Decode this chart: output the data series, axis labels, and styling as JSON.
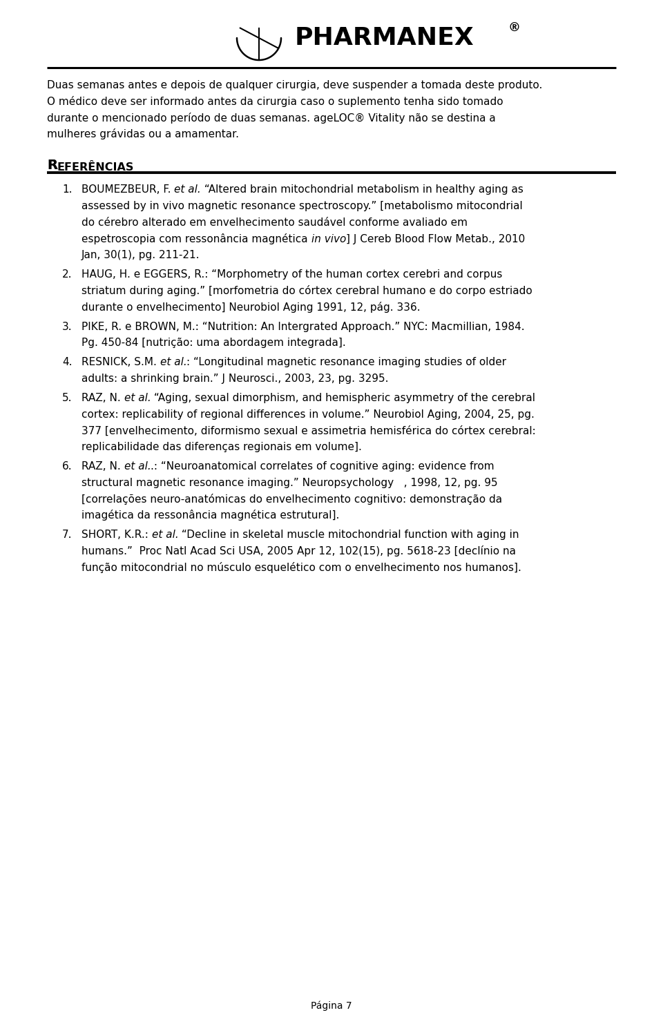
{
  "background_color": "#ffffff",
  "text_color": "#000000",
  "line_color": "#000000",
  "page_number": "Página 7",
  "intro_text": "Duas semanas antes e depois de qualquer cirurgia, deve suspender a tomada deste produto.\nO médico deve ser informado antes da cirurgia caso o suplemento tenha sido tomado\ndurante o mencionado período de duas semanas. ageLOC® Vitality não se destina a\nmulheres grávidas ou a amamentar.",
  "ref_heading_big": "R",
  "ref_heading_rest": "EFERÊNCIAS",
  "references": [
    {
      "num": "1.",
      "lines": [
        [
          {
            "t": "BOUMEZBEUR, F. ",
            "i": false
          },
          {
            "t": "et al.",
            "i": true
          },
          {
            "t": " “Altered brain mitochondrial metabolism in healthy aging as",
            "i": false
          }
        ],
        [
          {
            "t": "assessed by in vivo magnetic resonance spectroscopy.” [metabolismo mitocondrial",
            "i": false
          }
        ],
        [
          {
            "t": "do cérebro alterado em envelhecimento saudável conforme avaliado em",
            "i": false
          }
        ],
        [
          {
            "t": "espetroscopia com ressonância magnética ",
            "i": false
          },
          {
            "t": "in vivo",
            "i": true
          },
          {
            "t": "] J Cereb Blood Flow Metab., 2010",
            "i": false
          }
        ],
        [
          {
            "t": "Jan, 30(1), pg. 211-21.",
            "i": false
          }
        ]
      ]
    },
    {
      "num": "2.",
      "lines": [
        [
          {
            "t": "HAUG, H. e EGGERS, R.: “Morphometry of the human cortex cerebri and corpus",
            "i": false
          }
        ],
        [
          {
            "t": "striatum during aging.” [morfometria do córtex cerebral humano e do corpo estriado",
            "i": false
          }
        ],
        [
          {
            "t": "durante o envelhecimento] Neurobiol Aging 1991, 12, pág. 336.",
            "i": false
          }
        ]
      ]
    },
    {
      "num": "3.",
      "lines": [
        [
          {
            "t": "PIKE, R. e BROWN, M.: “Nutrition: An Intergrated Approach.” NYC: Macmillian, 1984.",
            "i": false
          }
        ],
        [
          {
            "t": "Pg. 450-84 [nutrição: uma abordagem integrada].",
            "i": false
          }
        ]
      ]
    },
    {
      "num": "4.",
      "lines": [
        [
          {
            "t": "RESNICK, S.M. ",
            "i": false
          },
          {
            "t": "et al.",
            "i": true
          },
          {
            "t": ": “Longitudinal magnetic resonance imaging studies of older",
            "i": false
          }
        ],
        [
          {
            "t": "adults: a shrinking brain.” J Neurosci., 2003, 23, pg. 3295.",
            "i": false
          }
        ]
      ]
    },
    {
      "num": "5.",
      "lines": [
        [
          {
            "t": "RAZ, N. ",
            "i": false
          },
          {
            "t": "et al.",
            "i": true
          },
          {
            "t": " “Aging, sexual dimorphism, and hemispheric asymmetry of the cerebral",
            "i": false
          }
        ],
        [
          {
            "t": "cortex: replicability of regional differences in volume.” Neurobiol Aging, 2004, 25, pg.",
            "i": false
          }
        ],
        [
          {
            "t": "377 [envelhecimento, diformismo sexual e assimetria hemisférica do córtex cerebral:",
            "i": false
          }
        ],
        [
          {
            "t": "replicabilidade das diferenças regionais em volume].",
            "i": false
          }
        ]
      ]
    },
    {
      "num": "6.",
      "lines": [
        [
          {
            "t": "RAZ, N. ",
            "i": false
          },
          {
            "t": "et al.",
            "i": true
          },
          {
            "t": ".: “Neuroanatomical correlates of cognitive aging: evidence from",
            "i": false
          }
        ],
        [
          {
            "t": "structural magnetic resonance imaging.” Neuropsychology   , 1998, 12, pg. 95",
            "i": false
          }
        ],
        [
          {
            "t": "[correlações neuro-anatómicas do envelhecimento cognitivo: demonstração da",
            "i": false
          }
        ],
        [
          {
            "t": "imagética da ressonância magnética estrutural].",
            "i": false
          }
        ]
      ]
    },
    {
      "num": "7.",
      "lines": [
        [
          {
            "t": "SHORT, K.R.: ",
            "i": false
          },
          {
            "t": "et al.",
            "i": true
          },
          {
            "t": " “Decline in skeletal muscle mitochondrial function with aging in",
            "i": false
          }
        ],
        [
          {
            "t": "humans.”  Proc Natl Acad Sci USA, 2005 Apr 12, 102(15), pg. 5618-23 [declínio na",
            "i": false
          }
        ],
        [
          {
            "t": "função mitocondrial no músculo esquelético com o envelhecimento nos humanos].",
            "i": false
          }
        ]
      ]
    }
  ]
}
